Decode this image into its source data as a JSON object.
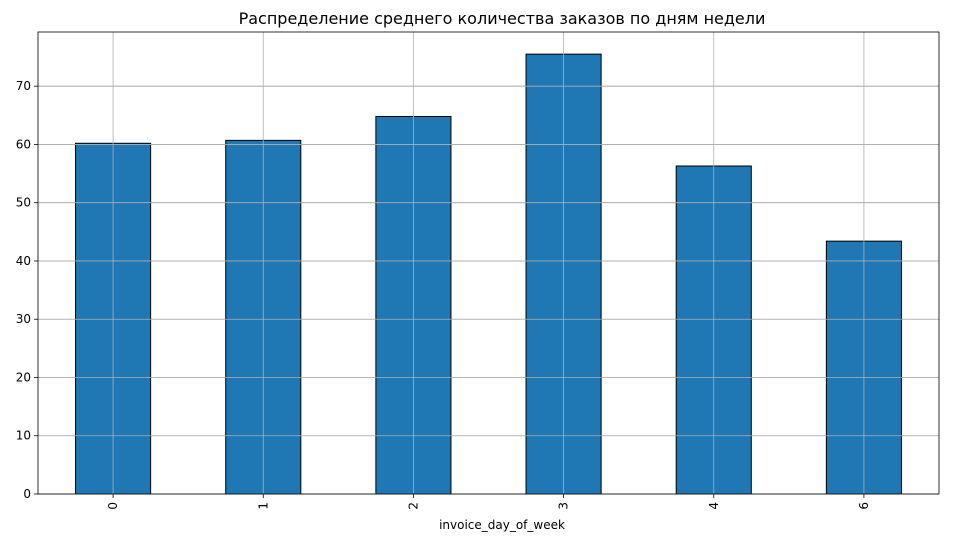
{
  "chart_data": {
    "type": "bar",
    "title": "Распределение среднего количества заказов по дням недели",
    "xlabel": "invoice_day_of_week",
    "ylabel": "",
    "categories": [
      "0",
      "1",
      "2",
      "3",
      "4",
      "6"
    ],
    "values": [
      60.2,
      60.7,
      64.8,
      75.5,
      56.3,
      43.4
    ],
    "ylim": [
      0,
      79.3
    ],
    "yticks": [
      "0",
      "10",
      "20",
      "30",
      "40",
      "50",
      "60",
      "70"
    ],
    "grid": true,
    "x_tick_rotation": "vertical",
    "colors": {
      "bar_fill": "#1f77b4",
      "bar_edge": "#000000",
      "grid": "#b0b0b0",
      "axis": "#000000"
    }
  }
}
